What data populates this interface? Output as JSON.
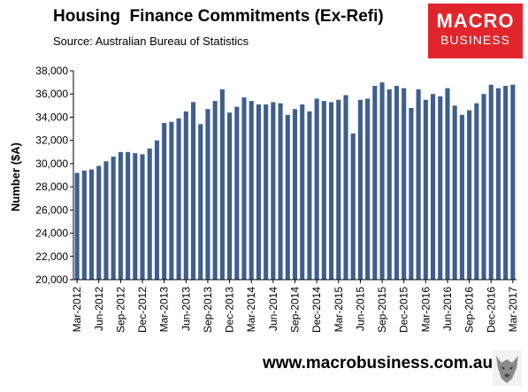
{
  "header": {
    "title": "Housing  Finance Commitments (Ex-Refi)",
    "source": "Source: Australian Bureau of Statistics"
  },
  "logo": {
    "line1": "MACRO",
    "line2": "BUSINESS"
  },
  "footer": {
    "url": "www.macrobusiness.com.au"
  },
  "colors": {
    "bar": "#3e5f8e",
    "logo_bg": "#e0262c",
    "grid": "#d9d9d9"
  },
  "chart_data": {
    "type": "bar",
    "title": "Housing  Finance Commitments (Ex-Refi)",
    "ylabel": "Number ($A)",
    "xlabel": "",
    "ylim": [
      20000,
      38000
    ],
    "yticks": [
      "20,000",
      "22,000",
      "24,000",
      "26,000",
      "28,000",
      "30,000",
      "32,000",
      "34,000",
      "36,000",
      "38,000"
    ],
    "grid": false,
    "categories": [
      "Mar-2012",
      "Apr-2012",
      "May-2012",
      "Jun-2012",
      "Jul-2012",
      "Aug-2012",
      "Sep-2012",
      "Oct-2012",
      "Nov-2012",
      "Dec-2012",
      "Jan-2013",
      "Feb-2013",
      "Mar-2013",
      "Apr-2013",
      "May-2013",
      "Jun-2013",
      "Jul-2013",
      "Aug-2013",
      "Sep-2013",
      "Oct-2013",
      "Nov-2013",
      "Dec-2013",
      "Jan-2014",
      "Feb-2014",
      "Mar-2014",
      "Apr-2014",
      "May-2014",
      "Jun-2014",
      "Jul-2014",
      "Aug-2014",
      "Sep-2014",
      "Oct-2014",
      "Nov-2014",
      "Dec-2014",
      "Jan-2015",
      "Feb-2015",
      "Mar-2015",
      "Apr-2015",
      "May-2015",
      "Jun-2015",
      "Jul-2015",
      "Aug-2015",
      "Sep-2015",
      "Oct-2015",
      "Nov-2015",
      "Dec-2015",
      "Jan-2016",
      "Feb-2016",
      "Mar-2016",
      "Apr-2016",
      "May-2016",
      "Jun-2016",
      "Jul-2016",
      "Aug-2016",
      "Sep-2016",
      "Oct-2016",
      "Nov-2016",
      "Dec-2016",
      "Jan-2017",
      "Feb-2017",
      "Mar-2017"
    ],
    "xtick_labels": [
      "Mar-2012",
      "Jun-2012",
      "Sep-2012",
      "Dec-2012",
      "Mar-2013",
      "Jun-2013",
      "Sep-2013",
      "Dec-2013",
      "Mar-2014",
      "Jun-2014",
      "Sep-2014",
      "Dec-2014",
      "Mar-2015",
      "Jun-2015",
      "Sep-2015",
      "Dec-2015",
      "Mar-2016",
      "Jun-2016",
      "Sep-2016",
      "Dec-2016",
      "Mar-2017"
    ],
    "values": [
      29200,
      29400,
      29500,
      29800,
      30200,
      30600,
      31000,
      31000,
      30900,
      30800,
      31300,
      32000,
      33500,
      33600,
      33900,
      34500,
      35300,
      33400,
      34700,
      35400,
      36400,
      34400,
      34900,
      35700,
      35400,
      35100,
      35100,
      35300,
      35200,
      34200,
      34700,
      35100,
      34500,
      35600,
      35400,
      35300,
      35500,
      35900,
      32600,
      35500,
      35600,
      36700,
      37000,
      36400,
      36700,
      36500,
      34800,
      36400,
      35500,
      36000,
      35800,
      36500,
      35000,
      34200,
      34600,
      35200,
      36000,
      36800,
      36500,
      36700,
      36800
    ]
  }
}
